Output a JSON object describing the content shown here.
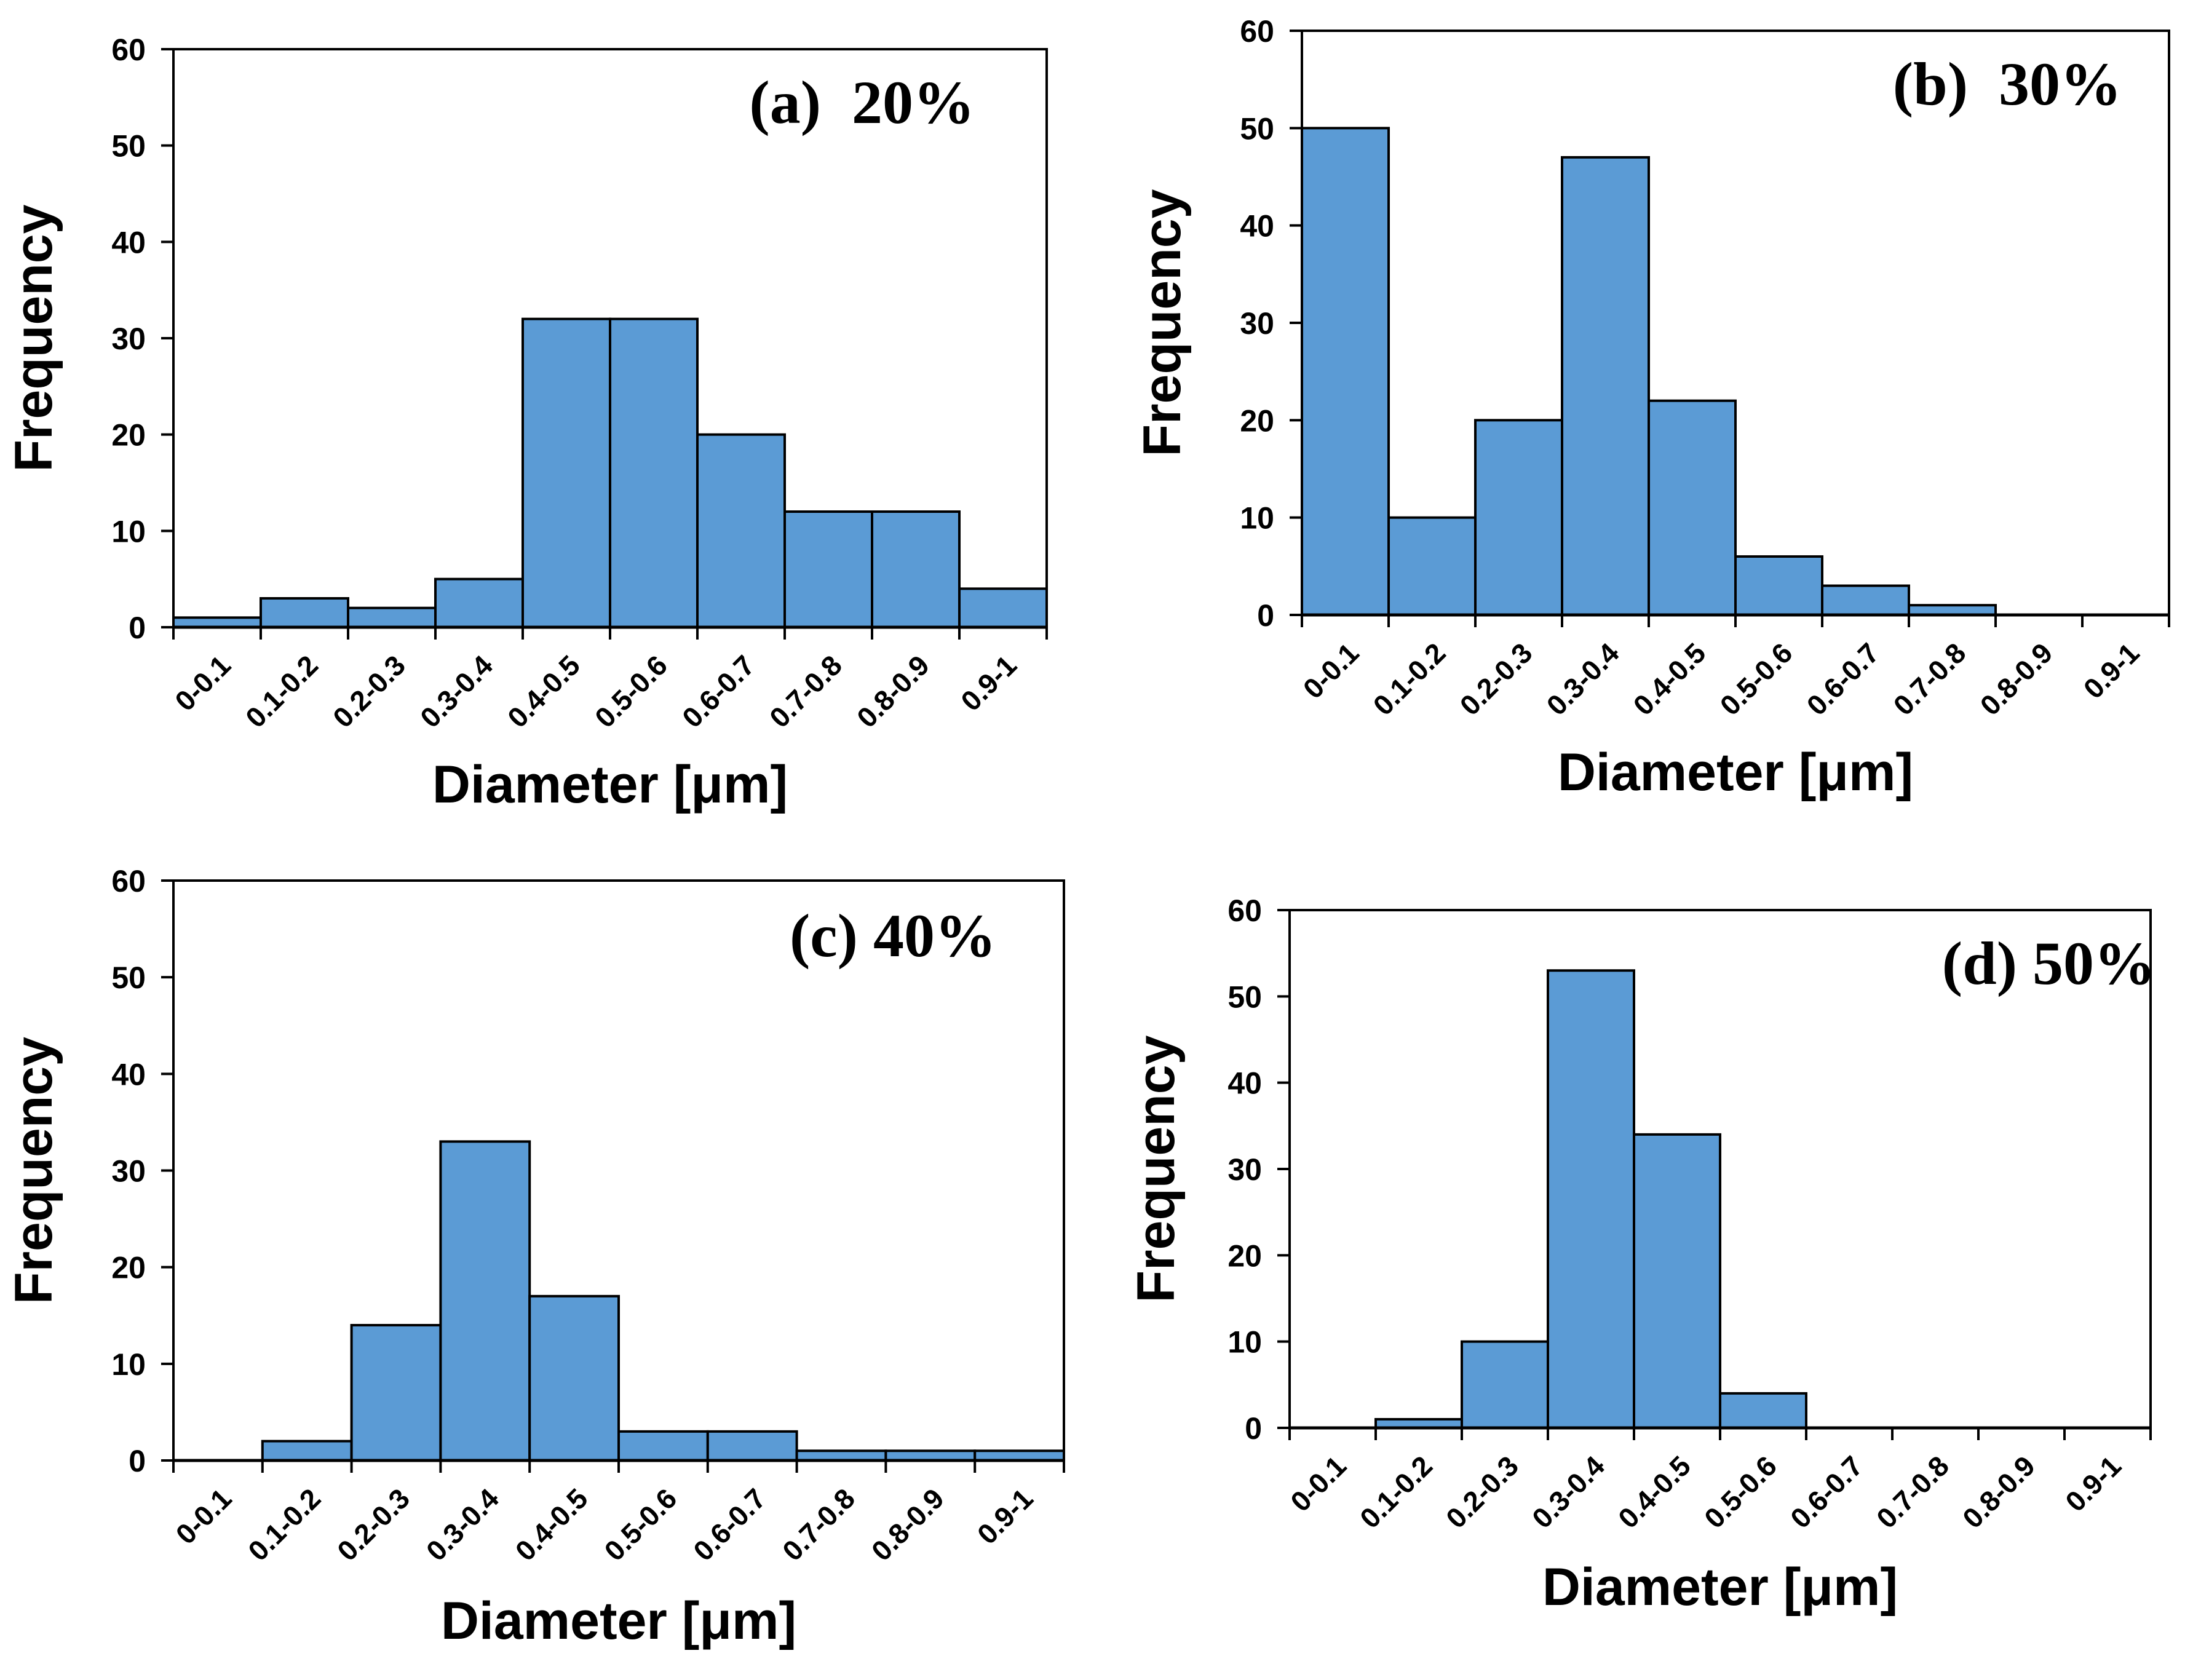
{
  "chart_data": [
    {
      "type": "bar",
      "panel_label": "(a)  20%",
      "xlabel": "Diameter [μm]",
      "ylabel": "Frequency",
      "ylim": [
        0,
        60
      ],
      "yticks": [
        "0",
        "10",
        "20",
        "30",
        "40",
        "50",
        "60"
      ],
      "categories": [
        "0-0.1",
        "0.1-0.2",
        "0.2-0.3",
        "0.3-0.4",
        "0.4-0.5",
        "0.5-0.6",
        "0.6-0.7",
        "0.7-0.8",
        "0.8-0.9",
        "0.9-1"
      ],
      "values": [
        1,
        3,
        2,
        5,
        32,
        32,
        20,
        12,
        12,
        4
      ],
      "bar_color": "#5b9bd5",
      "grid": false
    },
    {
      "type": "bar",
      "panel_label": "(b)  30%",
      "xlabel": "Diameter [μm]",
      "ylabel": "Frequency",
      "ylim": [
        0,
        60
      ],
      "yticks": [
        "0",
        "10",
        "20",
        "30",
        "40",
        "50",
        "60"
      ],
      "categories": [
        "0-0.1",
        "0.1-0.2",
        "0.2-0.3",
        "0.3-0.4",
        "0.4-0.5",
        "0.5-0.6",
        "0.6-0.7",
        "0.7-0.8",
        "0.8-0.9",
        "0.9-1"
      ],
      "values": [
        50,
        10,
        20,
        47,
        22,
        6,
        3,
        1,
        0,
        0
      ],
      "bar_color": "#5b9bd5",
      "grid": false
    },
    {
      "type": "bar",
      "panel_label": "(c) 40%",
      "xlabel": "Diameter [μm]",
      "ylabel": "Frequency",
      "ylim": [
        0,
        60
      ],
      "yticks": [
        "0",
        "10",
        "20",
        "30",
        "40",
        "50",
        "60"
      ],
      "categories": [
        "0-0.1",
        "0.1-0.2",
        "0.2-0.3",
        "0.3-0.4",
        "0.4-0.5",
        "0.5-0.6",
        "0.6-0.7",
        "0.7-0.8",
        "0.8-0.9",
        "0.9-1"
      ],
      "values": [
        0,
        2,
        14,
        33,
        17,
        3,
        3,
        1,
        1,
        1
      ],
      "bar_color": "#5b9bd5",
      "grid": false
    },
    {
      "type": "bar",
      "panel_label": "(d) 50%",
      "xlabel": "Diameter [μm]",
      "ylabel": "Frequency",
      "ylim": [
        0,
        60
      ],
      "yticks": [
        "0",
        "10",
        "20",
        "30",
        "40",
        "50",
        "60"
      ],
      "categories": [
        "0-0.1",
        "0.1-0.2",
        "0.2-0.3",
        "0.3-0.4",
        "0.4-0.5",
        "0.5-0.6",
        "0.6-0.7",
        "0.7-0.8",
        "0.8-0.9",
        "0.9-1"
      ],
      "values": [
        0,
        1,
        10,
        53,
        34,
        4,
        0,
        0,
        0,
        0
      ],
      "bar_color": "#5b9bd5",
      "grid": false
    }
  ]
}
